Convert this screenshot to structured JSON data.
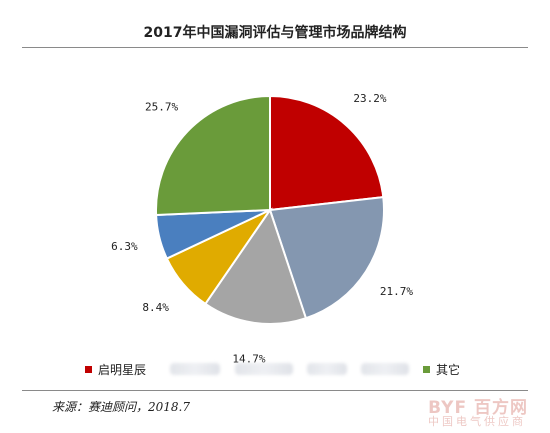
{
  "chart_data": {
    "type": "pie",
    "title": "2017年中国漏洞评估与管理市场品牌结构",
    "slices": [
      {
        "label": "启明星辰",
        "value": 23.2,
        "display": "23.2%",
        "color": "#c00000"
      },
      {
        "label": "",
        "value": 21.7,
        "display": "21.7%",
        "color": "#8497b0"
      },
      {
        "label": "",
        "value": 14.7,
        "display": "14.7%",
        "color": "#a5a5a5"
      },
      {
        "label": "",
        "value": 8.4,
        "display": "8.4%",
        "color": "#e0ab00"
      },
      {
        "label": "",
        "value": 6.3,
        "display": "6.3%",
        "color": "#4a7fbf"
      },
      {
        "label": "其它",
        "value": 25.7,
        "display": "25.7%",
        "color": "#6a9b3a"
      }
    ],
    "start_angle_deg": 0,
    "direction": "clockwise",
    "legend_position": "bottom"
  },
  "source": "来源：赛迪顾问，2018.7",
  "watermark": {
    "logo": "BYF 百方网",
    "sub": "中国电气供应商"
  }
}
